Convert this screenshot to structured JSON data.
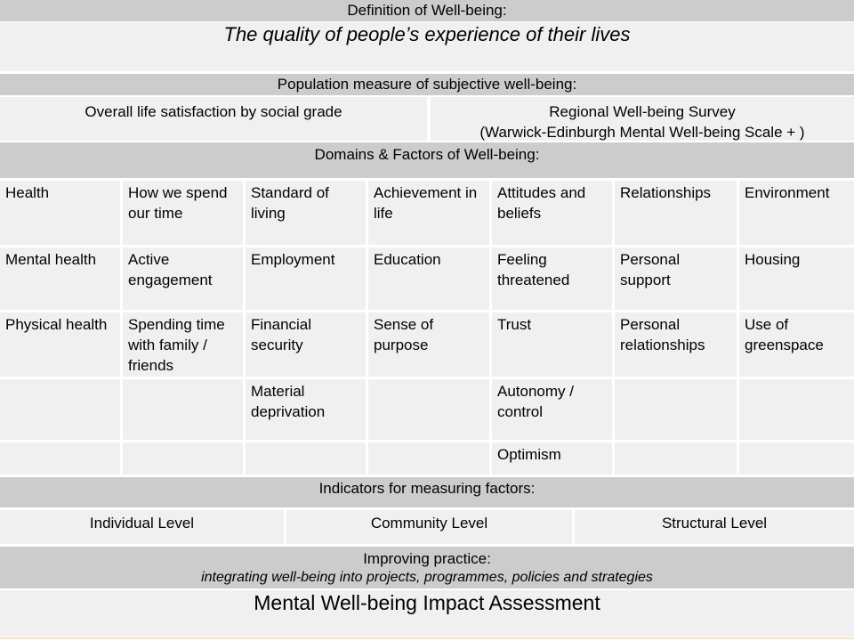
{
  "definition": {
    "header": "Definition of Well-being:",
    "text": "The quality of people’s experience of their lives"
  },
  "population": {
    "header": "Population measure of subjective well-being:",
    "left": "Overall life satisfaction by social grade",
    "right_line1": "Regional Well-being Survey",
    "right_line2": "(Warwick-Edinburgh Mental Well-being Scale + )"
  },
  "domains": {
    "header": "Domains & Factors of Well-being:",
    "columns": [
      "Health",
      "How we spend our time",
      "Standard of living",
      "Achievement in life",
      "Attitudes and beliefs",
      "Relationships",
      "Environment"
    ],
    "rows": [
      [
        "Mental health",
        "Active engagement",
        "Employment",
        "Education",
        "Feeling threatened",
        "Personal support",
        "Housing"
      ],
      [
        "Physical health",
        "Spending time with family / friends",
        "Financial security",
        "Sense of purpose",
        "Trust",
        "Personal relationships",
        "Use of greenspace"
      ],
      [
        "",
        "",
        "Material deprivation",
        "",
        "Autonomy / control",
        "",
        ""
      ],
      [
        "",
        "",
        "",
        "",
        "Optimism",
        "",
        ""
      ]
    ]
  },
  "indicators": {
    "header": "Indicators for measuring factors:",
    "levels": [
      "Individual Level",
      "Community Level",
      "Structural Level"
    ]
  },
  "practice": {
    "header": "Improving practice:",
    "subtext": "integrating well-being into projects, programmes, policies and strategies"
  },
  "assessment": {
    "title": "Mental Well-being Impact Assessment"
  },
  "colors": {
    "header_bg": "#cccccc",
    "cell_bg": "#f0f0f0",
    "grid_line": "#ffffff",
    "accent": "#f2e5b8"
  }
}
